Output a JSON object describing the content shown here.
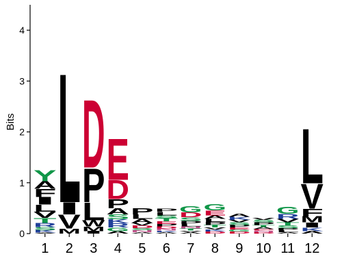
{
  "chart_data": {
    "type": "sequence-logo",
    "ylabel": "Bits",
    "ylim": [
      0,
      4.5
    ],
    "yticks": [
      0,
      1,
      2,
      3,
      4
    ],
    "colors": {
      "hydrophobic": "#000000",
      "acidic": "#cc0033",
      "polar": "#109648",
      "basic": "#1f3f99",
      "amide": "#c0508a"
    },
    "color_of": {
      "A": "#000000",
      "V": "#000000",
      "L": "#000000",
      "I": "#000000",
      "P": "#000000",
      "F": "#000000",
      "W": "#000000",
      "M": "#000000",
      "D": "#cc0033",
      "E": "#cc0033",
      "G": "#109648",
      "S": "#109648",
      "T": "#109648",
      "Y": "#109648",
      "C": "#109648",
      "K": "#1f3f99",
      "R": "#1f3f99",
      "H": "#1f3f99",
      "N": "#c0508a",
      "Q": "#c0508a"
    },
    "positions": [
      {
        "label": "1",
        "letters": [
          {
            "aa": "A",
            "bits": 0.02
          },
          {
            "aa": "K",
            "bits": 0.05
          },
          {
            "aa": "S",
            "bits": 0.06
          },
          {
            "aa": "R",
            "bits": 0.08
          },
          {
            "aa": "T",
            "bits": 0.1
          },
          {
            "aa": "V",
            "bits": 0.12
          },
          {
            "aa": "L",
            "bits": 0.14
          },
          {
            "aa": "I",
            "bits": 0.15
          },
          {
            "aa": "F",
            "bits": 0.16
          },
          {
            "aa": "A",
            "bits": 0.15
          },
          {
            "aa": "Y",
            "bits": 0.22
          }
        ]
      },
      {
        "label": "2",
        "letters": [
          {
            "aa": "M",
            "bits": 0.1
          },
          {
            "aa": "V",
            "bits": 0.28
          },
          {
            "aa": "I",
            "bits": 0.24
          },
          {
            "aa": "L",
            "bits": 2.6
          }
        ]
      },
      {
        "label": "3",
        "letters": [
          {
            "aa": "I",
            "bits": 0.05
          },
          {
            "aa": "M",
            "bits": 0.09
          },
          {
            "aa": "W",
            "bits": 0.12
          },
          {
            "aa": "L",
            "bits": 0.36
          },
          {
            "aa": "P",
            "bits": 0.68
          },
          {
            "aa": "D",
            "bits": 1.37
          }
        ]
      },
      {
        "label": "4",
        "letters": [
          {
            "aa": "A",
            "bits": 0.05
          },
          {
            "aa": "G",
            "bits": 0.07
          },
          {
            "aa": "R",
            "bits": 0.08
          },
          {
            "aa": "K",
            "bits": 0.08
          },
          {
            "aa": "S",
            "bits": 0.1
          },
          {
            "aa": "A",
            "bits": 0.12
          },
          {
            "aa": "P",
            "bits": 0.18
          },
          {
            "aa": "D",
            "bits": 0.38
          },
          {
            "aa": "E",
            "bits": 0.83
          }
        ]
      },
      {
        "label": "5",
        "letters": [
          {
            "aa": "A",
            "bits": 0.03
          },
          {
            "aa": "N",
            "bits": 0.04
          },
          {
            "aa": "S",
            "bits": 0.04
          },
          {
            "aa": "D",
            "bits": 0.05
          },
          {
            "aa": "V",
            "bits": 0.05
          },
          {
            "aa": "A",
            "bits": 0.08
          },
          {
            "aa": "L",
            "bits": 0.09
          },
          {
            "aa": "P",
            "bits": 0.12
          }
        ]
      },
      {
        "label": "6",
        "letters": [
          {
            "aa": "A",
            "bits": 0.03
          },
          {
            "aa": "K",
            "bits": 0.03
          },
          {
            "aa": "N",
            "bits": 0.04
          },
          {
            "aa": "D",
            "bits": 0.04
          },
          {
            "aa": "P",
            "bits": 0.05
          },
          {
            "aa": "E",
            "bits": 0.05
          },
          {
            "aa": "T",
            "bits": 0.06
          },
          {
            "aa": "S",
            "bits": 0.06
          },
          {
            "aa": "L",
            "bits": 0.07
          },
          {
            "aa": "P",
            "bits": 0.06
          }
        ]
      },
      {
        "label": "7",
        "letters": [
          {
            "aa": "A",
            "bits": 0.03
          },
          {
            "aa": "V",
            "bits": 0.03
          },
          {
            "aa": "T",
            "bits": 0.04
          },
          {
            "aa": "N",
            "bits": 0.04
          },
          {
            "aa": "L",
            "bits": 0.05
          },
          {
            "aa": "P",
            "bits": 0.06
          },
          {
            "aa": "S",
            "bits": 0.07
          },
          {
            "aa": "D",
            "bits": 0.1
          },
          {
            "aa": "G",
            "bits": 0.12
          }
        ]
      },
      {
        "label": "8",
        "letters": [
          {
            "aa": "D",
            "bits": 0.04
          },
          {
            "aa": "K",
            "bits": 0.04
          },
          {
            "aa": "V",
            "bits": 0.04
          },
          {
            "aa": "T",
            "bits": 0.05
          },
          {
            "aa": "P",
            "bits": 0.06
          },
          {
            "aa": "L",
            "bits": 0.06
          },
          {
            "aa": "A",
            "bits": 0.07
          },
          {
            "aa": "E",
            "bits": 0.1
          },
          {
            "aa": "G",
            "bits": 0.12
          }
        ]
      },
      {
        "label": "9",
        "letters": [
          {
            "aa": "D",
            "bits": 0.04
          },
          {
            "aa": "G",
            "bits": 0.04
          },
          {
            "aa": "E",
            "bits": 0.04
          },
          {
            "aa": "P",
            "bits": 0.05
          },
          {
            "aa": "S",
            "bits": 0.05
          },
          {
            "aa": "V",
            "bits": 0.05
          },
          {
            "aa": "K",
            "bits": 0.06
          },
          {
            "aa": "A",
            "bits": 0.06
          }
        ]
      },
      {
        "label": "10",
        "letters": [
          {
            "aa": "D",
            "bits": 0.03
          },
          {
            "aa": "N",
            "bits": 0.03
          },
          {
            "aa": "E",
            "bits": 0.03
          },
          {
            "aa": "A",
            "bits": 0.04
          },
          {
            "aa": "T",
            "bits": 0.04
          },
          {
            "aa": "P",
            "bits": 0.05
          },
          {
            "aa": "S",
            "bits": 0.05
          },
          {
            "aa": "V",
            "bits": 0.04
          }
        ]
      },
      {
        "label": "11",
        "letters": [
          {
            "aa": "A",
            "bits": 0.03
          },
          {
            "aa": "L",
            "bits": 0.04
          },
          {
            "aa": "P",
            "bits": 0.04
          },
          {
            "aa": "S",
            "bits": 0.05
          },
          {
            "aa": "T",
            "bits": 0.06
          },
          {
            "aa": "V",
            "bits": 0.07
          },
          {
            "aa": "R",
            "bits": 0.1
          },
          {
            "aa": "G",
            "bits": 0.14
          }
        ]
      },
      {
        "label": "12",
        "letters": [
          {
            "aa": "A",
            "bits": 0.05
          },
          {
            "aa": "K",
            "bits": 0.07
          },
          {
            "aa": "I",
            "bits": 0.1
          },
          {
            "aa": "M",
            "bits": 0.12
          },
          {
            "aa": "F",
            "bits": 0.15
          },
          {
            "aa": "V",
            "bits": 0.5
          },
          {
            "aa": "L",
            "bits": 1.1
          }
        ]
      }
    ]
  }
}
